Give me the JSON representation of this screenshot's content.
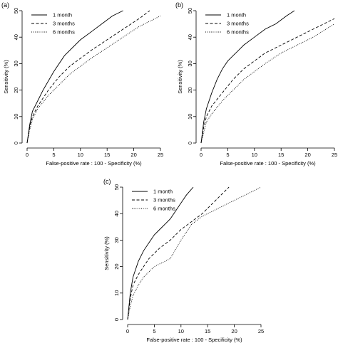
{
  "chart_data": [
    {
      "panel_label": "(a)",
      "type": "line",
      "xlabel": "False-positive rate : 100 - Specificity (%)",
      "ylabel": "Sensitivity (%)",
      "xlim": [
        0,
        25
      ],
      "ylim": [
        0,
        50
      ],
      "xticks": [
        0,
        5,
        10,
        15,
        20,
        25
      ],
      "yticks": [
        0,
        10,
        20,
        30,
        40,
        50
      ],
      "legend_position": "top-left",
      "series": [
        {
          "name": "1 month",
          "style": "solid",
          "x": [
            0,
            0.5,
            1,
            2,
            3,
            5,
            7,
            10,
            12,
            14,
            16,
            18
          ],
          "y": [
            0,
            7,
            12,
            16,
            20,
            27,
            33,
            39,
            42,
            45,
            48,
            50
          ]
        },
        {
          "name": "3 months",
          "style": "dashed",
          "x": [
            0,
            0.5,
            1,
            2,
            4,
            6,
            8,
            10,
            12,
            15,
            18,
            21,
            23
          ],
          "y": [
            0,
            6,
            10,
            14,
            20,
            25,
            29,
            32,
            35,
            39,
            43,
            47,
            50
          ]
        },
        {
          "name": "6 months",
          "style": "dotted",
          "x": [
            0,
            0.5,
            1,
            2,
            4,
            6,
            8,
            10,
            12,
            15,
            18,
            21,
            25
          ],
          "y": [
            0,
            5,
            9,
            13,
            18,
            22,
            26,
            29,
            32,
            36,
            40,
            44,
            48
          ]
        }
      ]
    },
    {
      "panel_label": "(b)",
      "type": "line",
      "xlabel": "False-positive rate : 100 - Specificity (%)",
      "ylabel": "Sensitivity (%)",
      "xlim": [
        0,
        25
      ],
      "ylim": [
        0,
        50
      ],
      "xticks": [
        0,
        5,
        10,
        15,
        20,
        25
      ],
      "yticks": [
        0,
        10,
        20,
        30,
        40,
        50
      ],
      "legend_position": "top-left",
      "series": [
        {
          "name": "1 month",
          "style": "solid",
          "x": [
            0,
            0.5,
            1,
            2,
            3,
            4,
            5,
            6,
            7,
            8,
            10,
            12,
            14,
            16,
            17.5
          ],
          "y": [
            0,
            8,
            13,
            19,
            24,
            28,
            31,
            33,
            35,
            37,
            40,
            43,
            45,
            48,
            50
          ]
        },
        {
          "name": "3 months",
          "style": "dashed",
          "x": [
            0,
            0.5,
            1,
            2,
            4,
            6,
            8,
            10,
            12,
            15,
            18,
            21,
            24,
            25
          ],
          "y": [
            0,
            6,
            10,
            14,
            19,
            24,
            28,
            31,
            34,
            37,
            40,
            43,
            46,
            47
          ]
        },
        {
          "name": "6 months",
          "style": "dotted",
          "x": [
            0,
            0.5,
            1,
            2,
            4,
            6,
            8,
            10,
            12,
            15,
            18,
            21,
            25
          ],
          "y": [
            0,
            4,
            8,
            11,
            16,
            20,
            24,
            27,
            30,
            34,
            37,
            40,
            45
          ]
        }
      ]
    },
    {
      "panel_label": "(c)",
      "type": "line",
      "xlabel": "False-positive rate : 100 - Specificity (%)",
      "ylabel": "Sensitivity (%)",
      "xlim": [
        0,
        25
      ],
      "ylim": [
        0,
        50
      ],
      "xticks": [
        0,
        5,
        10,
        15,
        20,
        25
      ],
      "yticks": [
        0,
        10,
        20,
        30,
        40,
        50
      ],
      "legend_position": "top-left",
      "series": [
        {
          "name": "1 month",
          "style": "solid",
          "x": [
            0,
            0.5,
            1,
            2,
            3,
            4,
            5,
            6,
            7,
            8,
            9,
            10,
            11,
            12.3
          ],
          "y": [
            0,
            10,
            16,
            22,
            26,
            29,
            32,
            34,
            36,
            38,
            41,
            44,
            47,
            50
          ]
        },
        {
          "name": "3 months",
          "style": "dashed",
          "x": [
            0,
            0.5,
            1,
            2,
            3,
            4,
            6,
            8,
            10,
            12,
            14,
            16,
            18,
            19
          ],
          "y": [
            0,
            8,
            13,
            17,
            20,
            23,
            27,
            30,
            34,
            37,
            40,
            44,
            48,
            50
          ]
        },
        {
          "name": "6 months",
          "style": "dotted",
          "x": [
            0,
            0.5,
            1,
            2,
            3,
            4,
            5,
            6,
            7,
            8,
            10,
            12,
            14,
            16,
            18,
            20,
            22,
            25
          ],
          "y": [
            0,
            5,
            9,
            13,
            16,
            18,
            20,
            21,
            22,
            23,
            30,
            36,
            39,
            41,
            43,
            45,
            47,
            50
          ]
        }
      ]
    }
  ]
}
